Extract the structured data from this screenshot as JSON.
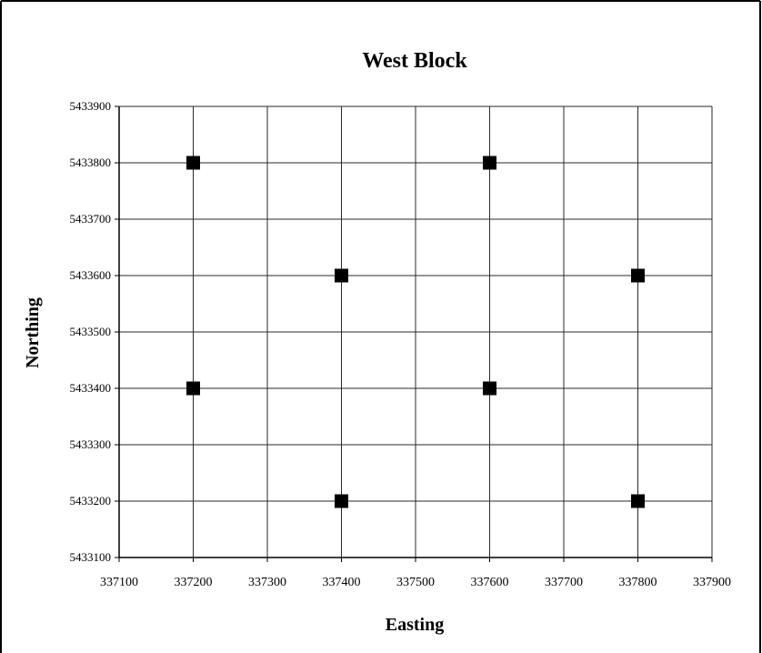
{
  "chart_data": {
    "type": "scatter",
    "title": "West Block",
    "xlabel": "Easting",
    "ylabel": "Northing",
    "xlim": [
      337100,
      337900
    ],
    "ylim": [
      5433100,
      5433900
    ],
    "x_ticks": [
      "337100",
      "337200",
      "337300",
      "337400",
      "337500",
      "337600",
      "337700",
      "337800",
      "337900"
    ],
    "y_ticks": [
      "5433100",
      "5433200",
      "5433300",
      "5433400",
      "5433500",
      "5433600",
      "5433700",
      "5433800",
      "5433900"
    ],
    "grid": true,
    "legend": "none",
    "marker": "square",
    "marker_color": "#000000",
    "points": [
      {
        "x": 337200,
        "y": 5433800
      },
      {
        "x": 337600,
        "y": 5433800
      },
      {
        "x": 337400,
        "y": 5433600
      },
      {
        "x": 337800,
        "y": 5433600
      },
      {
        "x": 337200,
        "y": 5433400
      },
      {
        "x": 337600,
        "y": 5433400
      },
      {
        "x": 337400,
        "y": 5433200
      },
      {
        "x": 337800,
        "y": 5433200
      }
    ]
  }
}
